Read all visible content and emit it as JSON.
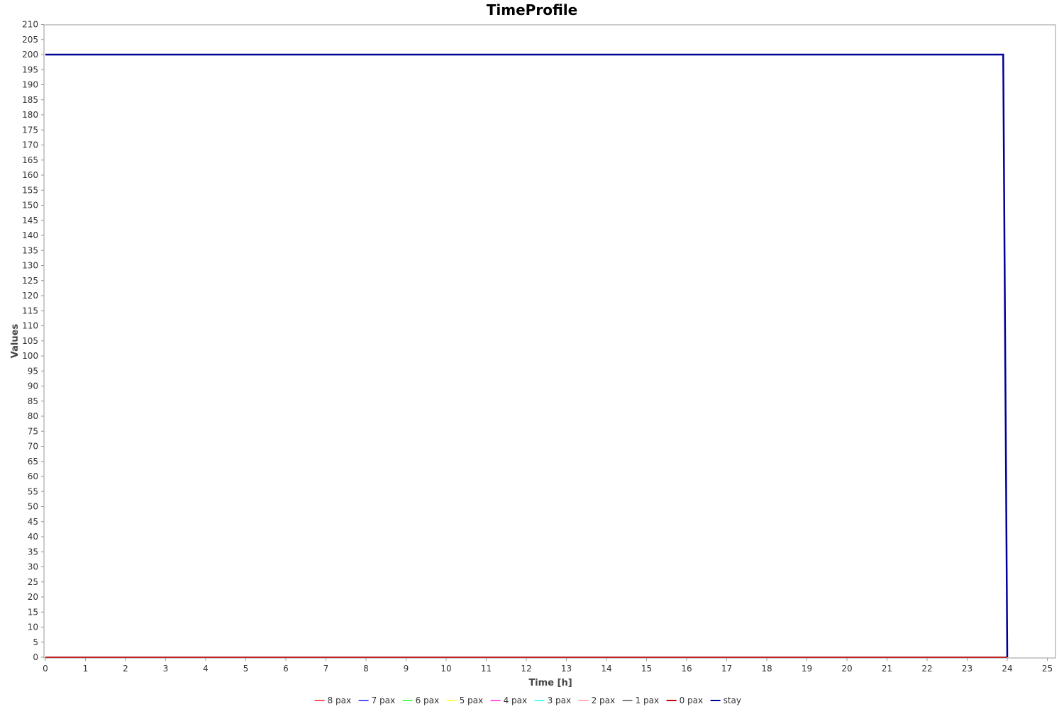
{
  "chart_data": {
    "type": "line",
    "title": "TimeProfile",
    "xlabel": "Time [h]",
    "ylabel": "Values",
    "xlim": [
      0,
      25.2
    ],
    "ylim": [
      0,
      210
    ],
    "xticks": [
      0,
      1,
      2,
      3,
      4,
      5,
      6,
      7,
      8,
      9,
      10,
      11,
      12,
      13,
      14,
      15,
      16,
      17,
      18,
      19,
      20,
      21,
      22,
      23,
      24,
      25
    ],
    "yticks": [
      0,
      5,
      10,
      15,
      20,
      25,
      30,
      35,
      40,
      45,
      50,
      55,
      60,
      65,
      70,
      75,
      80,
      85,
      90,
      95,
      100,
      105,
      110,
      115,
      120,
      125,
      130,
      135,
      140,
      145,
      150,
      155,
      160,
      165,
      170,
      175,
      180,
      185,
      190,
      195,
      200,
      205,
      210
    ],
    "grid": false,
    "legend_position": "bottom",
    "series": [
      {
        "name": "8 pax",
        "color": "#ff5555",
        "x": [
          0,
          24
        ],
        "y": [
          0,
          0
        ]
      },
      {
        "name": "7 pax",
        "color": "#5555ff",
        "x": [
          0,
          24
        ],
        "y": [
          0,
          0
        ]
      },
      {
        "name": "6 pax",
        "color": "#55ff55",
        "x": [
          0,
          24
        ],
        "y": [
          0,
          0
        ]
      },
      {
        "name": "5 pax",
        "color": "#ffff55",
        "x": [
          0,
          24
        ],
        "y": [
          0,
          0
        ]
      },
      {
        "name": "4 pax",
        "color": "#ff55ff",
        "x": [
          0,
          24
        ],
        "y": [
          0,
          0
        ]
      },
      {
        "name": "3 pax",
        "color": "#55ffff",
        "x": [
          0,
          24
        ],
        "y": [
          0,
          0
        ]
      },
      {
        "name": "2 pax",
        "color": "#ffafaf",
        "x": [
          0,
          24
        ],
        "y": [
          0,
          0
        ]
      },
      {
        "name": "1 pax",
        "color": "#808080",
        "x": [
          0,
          24
        ],
        "y": [
          0,
          0
        ]
      },
      {
        "name": "0 pax",
        "color": "#c00000",
        "x": [
          0,
          24
        ],
        "y": [
          0,
          0
        ]
      },
      {
        "name": "stay",
        "color": "#000099",
        "x": [
          0,
          23.9,
          24
        ],
        "y": [
          200,
          200,
          0
        ]
      }
    ]
  }
}
